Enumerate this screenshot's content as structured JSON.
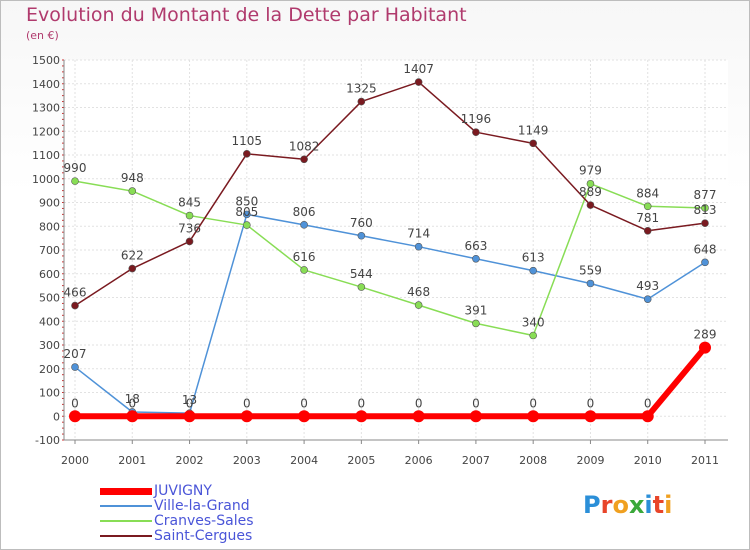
{
  "chart_data": {
    "type": "line",
    "title": "Evolution du Montant de la Dette par Habitant",
    "subtitle": "(en €)",
    "categories": [
      "2000",
      "2001",
      "2002",
      "2003",
      "2004",
      "2005",
      "2006",
      "2007",
      "2008",
      "2009",
      "2010",
      "2011"
    ],
    "ylim": [
      -100,
      1500
    ],
    "yticks": [
      -100,
      0,
      100,
      200,
      300,
      400,
      500,
      600,
      700,
      800,
      900,
      1000,
      1100,
      1200,
      1300,
      1400,
      1500
    ],
    "grid": true,
    "legend_position": "bottom-left",
    "series": [
      {
        "name": "JUVIGNY",
        "color": "#ff0000",
        "values": [
          0,
          0,
          0,
          0,
          0,
          0,
          0,
          0,
          0,
          0,
          0,
          289
        ]
      },
      {
        "name": "Ville-la-Grand",
        "color": "#4f92d8",
        "values": [
          207,
          18,
          13,
          850,
          806,
          760,
          714,
          663,
          613,
          559,
          493,
          648
        ]
      },
      {
        "name": "Cranves-Sales",
        "color": "#88dd55",
        "values": [
          990,
          948,
          845,
          805,
          616,
          544,
          468,
          391,
          340,
          979,
          884,
          877
        ]
      },
      {
        "name": "Saint-Cergues",
        "color": "#7a1a20",
        "values": [
          466,
          622,
          736,
          1105,
          1082,
          1325,
          1407,
          1196,
          1149,
          889,
          781,
          813
        ]
      }
    ]
  },
  "logo": {
    "letters": [
      "P",
      "r",
      "o",
      "x",
      "i",
      "t",
      "i"
    ],
    "colors": [
      "#2b8fd8",
      "#e8452a",
      "#f0a020",
      "#3aa83a",
      "#2b8fd8",
      "#e8452a",
      "#f0a020"
    ]
  }
}
